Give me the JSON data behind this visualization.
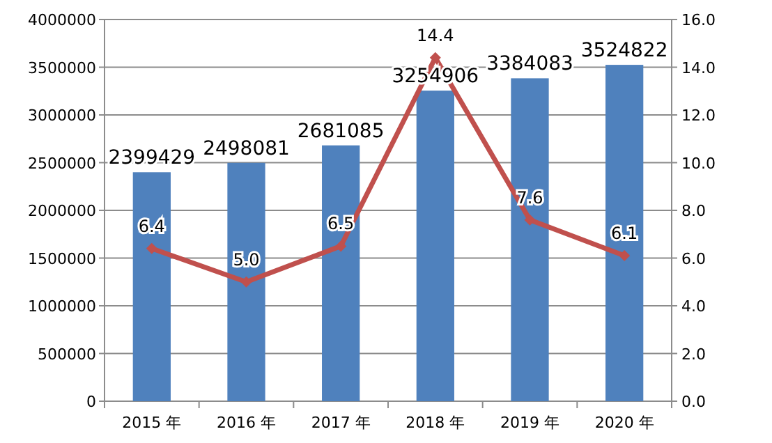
{
  "chart_data": {
    "type": "bar",
    "categories": [
      "2015 年",
      "2016 年",
      "2017 年",
      "2018 年",
      "2019 年",
      "2020 年"
    ],
    "series": [
      {
        "color": "#4f81bd",
        "values": [
          2399429,
          2498081,
          2681085,
          3254906,
          3384083,
          3524822
        ],
        "value_labels": [
          "2399429",
          "2498081",
          "2681085",
          "3254906",
          "3384083",
          "3524822"
        ]
      },
      {
        "type": "line",
        "axis": "y2",
        "color": "#c0504d",
        "marker": "diamond",
        "values": [
          6.4,
          5.0,
          6.5,
          14.4,
          7.6,
          6.1
        ],
        "value_labels": [
          "6.4",
          "5.0",
          "6.5",
          "14.4",
          "7.6",
          "6.1"
        ]
      }
    ],
    "ylim": [
      0,
      4000000
    ],
    "yticks": [
      0,
      500000,
      1000000,
      1500000,
      2000000,
      2500000,
      3000000,
      3500000,
      4000000
    ],
    "y2lim": [
      0,
      16
    ],
    "y2ticks": [
      {
        "value": 0,
        "label": "0.0"
      },
      {
        "value": 2,
        "label": "2.0"
      },
      {
        "value": 4,
        "label": "4.0"
      },
      {
        "value": 6,
        "label": "6.0"
      },
      {
        "value": 8,
        "label": "8.0"
      },
      {
        "value": 10,
        "label": "10.0"
      },
      {
        "value": 12,
        "label": "12.0"
      },
      {
        "value": 14,
        "label": "14.0"
      },
      {
        "value": 16,
        "label": "16.0"
      }
    ],
    "grid": "y"
  }
}
